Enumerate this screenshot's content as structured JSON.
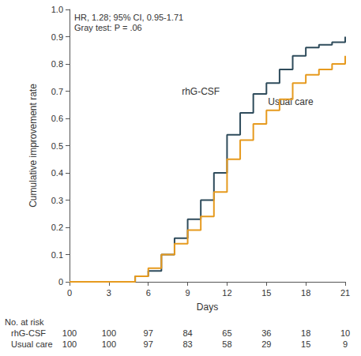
{
  "chart_data": {
    "type": "line",
    "line_style": "step",
    "x_label": "Days",
    "y_label": "Cumulative improvement rate",
    "annotations": [
      "HR, 1.28; 95% CI, 0.95-1.71",
      "Gray test: P = .06"
    ],
    "xlim": [
      0,
      21
    ],
    "xticks": [
      0,
      3,
      6,
      9,
      12,
      15,
      18,
      21
    ],
    "ylim": [
      0,
      1
    ],
    "yticks": [
      0,
      0.1,
      0.2,
      0.3,
      0.4,
      0.5,
      0.6,
      0.7,
      0.8,
      0.9,
      {
        "value": 1,
        "label": "1.0"
      }
    ],
    "grid": false,
    "x": [
      0,
      5,
      6,
      7,
      8,
      9,
      10,
      11,
      12,
      13,
      14,
      15,
      16,
      17,
      18,
      19,
      20,
      21
    ],
    "series": [
      {
        "name": "rhG-CSF",
        "color": "#2e4b5b",
        "values": [
          0,
          0.02,
          0.04,
          0.1,
          0.16,
          0.23,
          0.3,
          0.4,
          0.54,
          0.62,
          0.69,
          0.73,
          0.78,
          0.83,
          0.86,
          0.87,
          0.88,
          0.9
        ]
      },
      {
        "name": "Usual care",
        "color": "#e69a1e",
        "values": [
          0,
          0.02,
          0.05,
          0.1,
          0.14,
          0.19,
          0.24,
          0.33,
          0.45,
          0.52,
          0.58,
          0.63,
          0.67,
          0.73,
          0.76,
          0.78,
          0.8,
          0.83
        ]
      }
    ],
    "risk_table": {
      "title": "No. at risk",
      "days": [
        0,
        3,
        6,
        9,
        12,
        15,
        18,
        21
      ],
      "rows": [
        {
          "name": "rhG-CSF",
          "values": [
            100,
            100,
            97,
            84,
            65,
            36,
            18,
            10
          ]
        },
        {
          "name": "Usual care",
          "values": [
            100,
            100,
            97,
            83,
            58,
            29,
            15,
            9
          ]
        }
      ]
    }
  }
}
